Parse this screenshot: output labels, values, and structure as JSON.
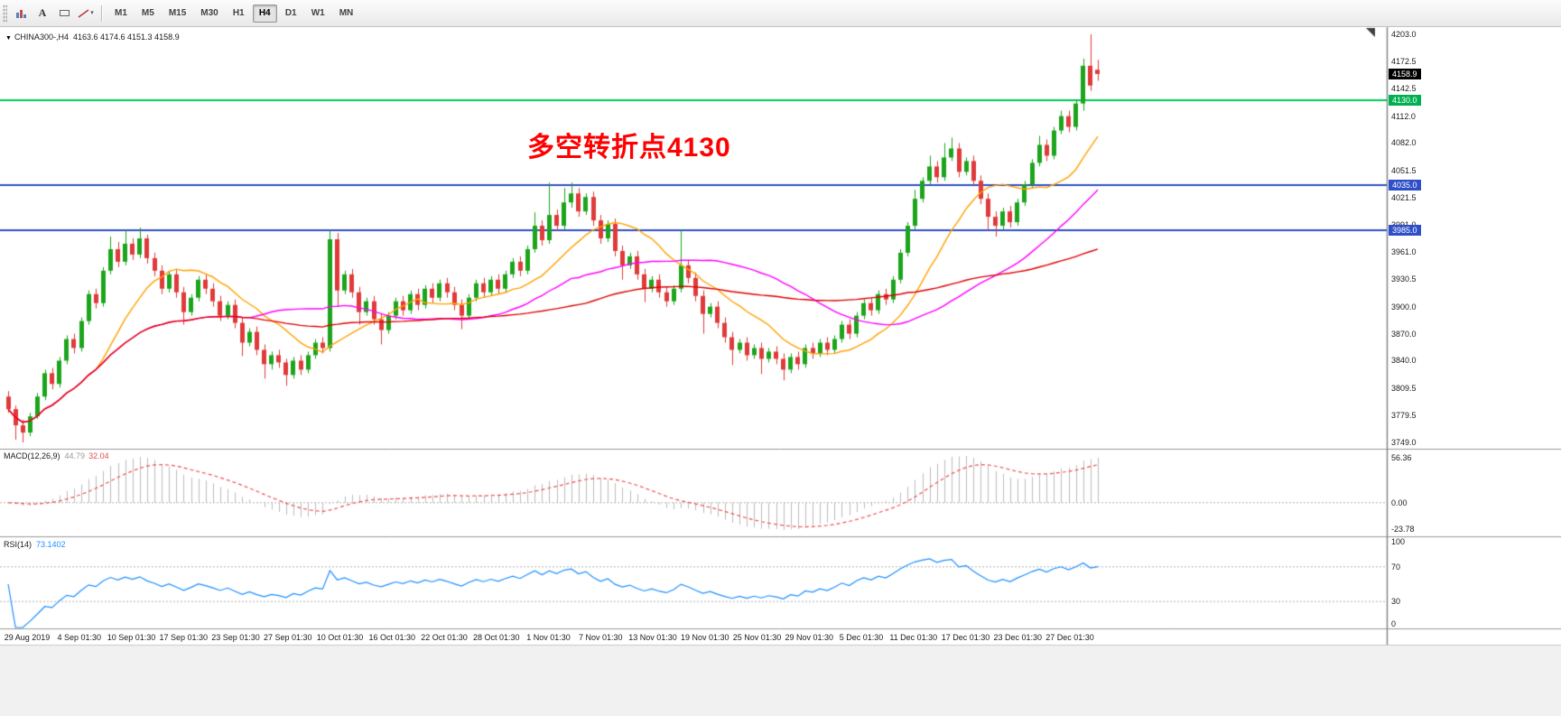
{
  "toolbar": {
    "text_tool_label": "A",
    "dropdown_icon": "▾",
    "timeframes": [
      {
        "label": "M1",
        "active": false
      },
      {
        "label": "M5",
        "active": false
      },
      {
        "label": "M15",
        "active": false
      },
      {
        "label": "M30",
        "active": false
      },
      {
        "label": "H1",
        "active": false
      },
      {
        "label": "H4",
        "active": true
      },
      {
        "label": "D1",
        "active": false
      },
      {
        "label": "W1",
        "active": false
      },
      {
        "label": "MN",
        "active": false
      }
    ]
  },
  "symbol_panel": {
    "menu_icon": "▼",
    "symbol": "CHINA300-,H4",
    "ohlc": "4163.6 4174.6 4151.3 4158.9"
  },
  "chart_data": {
    "type": "candlestick",
    "symbol": "CHINA300-",
    "timeframe": "H4",
    "title": "CHINA300-,H4",
    "annotation": {
      "text": "多空转折点4130",
      "color": "#ff0000"
    },
    "price_axis": {
      "max": 4203.0,
      "min": 3749.0,
      "ticks": [
        "4203.0",
        "4172.5",
        "4142.5",
        "4112.0",
        "4082.0",
        "4051.5",
        "4021.5",
        "3991.0",
        "3961.0",
        "3930.5",
        "3900.0",
        "3870.0",
        "3840.0",
        "3809.5",
        "3779.5",
        "3749.0"
      ]
    },
    "price_tags": [
      {
        "text": "4158.9",
        "price": 4158.9,
        "bg": "#000000"
      },
      {
        "text": "4130.0",
        "price": 4130.0,
        "bg": "#00b050"
      },
      {
        "text": "4035.0",
        "price": 4035.0,
        "bg": "#2e4fc8"
      },
      {
        "text": "3985.0",
        "price": 3985.0,
        "bg": "#2e4fc8"
      }
    ],
    "hlines": [
      {
        "price": 4130.0,
        "color": "#00c853"
      },
      {
        "price": 4035.0,
        "color": "#2e4fc8"
      },
      {
        "price": 3985.0,
        "color": "#2e4fc8"
      }
    ],
    "colors": {
      "up": "#1ca51c",
      "down": "#e03a3a",
      "macd_hist": "#bdbdbd",
      "macd_signal": "#f05050",
      "rsi": "#1e90ff"
    },
    "moving_averages": [
      {
        "period": 13,
        "color": "#ffa200"
      },
      {
        "period": 34,
        "color": "#ff00ff"
      },
      {
        "period": 80,
        "color": "#e00000"
      }
    ],
    "x_labels": [
      "29 Aug 2019",
      "4 Sep 01:30",
      "10 Sep 01:30",
      "17 Sep 01:30",
      "23 Sep 01:30",
      "27 Sep 01:30",
      "10 Oct 01:30",
      "16 Oct 01:30",
      "22 Oct 01:30",
      "28 Oct 01:30",
      "1 Nov 01:30",
      "7 Nov 01:30",
      "13 Nov 01:30",
      "19 Nov 01:30",
      "25 Nov 01:30",
      "29 Nov 01:30",
      "5 Dec 01:30",
      "11 Dec 01:30",
      "17 Dec 01:30",
      "23 Dec 01:30",
      "27 Dec 01:30"
    ],
    "candles": [
      [
        3800,
        3806,
        3782,
        3786
      ],
      [
        3786,
        3790,
        3752,
        3768
      ],
      [
        3768,
        3774,
        3749,
        3760
      ],
      [
        3760,
        3782,
        3756,
        3778
      ],
      [
        3778,
        3804,
        3775,
        3800
      ],
      [
        3800,
        3830,
        3796,
        3826
      ],
      [
        3826,
        3832,
        3808,
        3814
      ],
      [
        3814,
        3844,
        3810,
        3840
      ],
      [
        3840,
        3868,
        3836,
        3864
      ],
      [
        3864,
        3870,
        3848,
        3854
      ],
      [
        3854,
        3888,
        3850,
        3884
      ],
      [
        3884,
        3918,
        3880,
        3914
      ],
      [
        3914,
        3920,
        3898,
        3904
      ],
      [
        3904,
        3944,
        3900,
        3940
      ],
      [
        3940,
        3978,
        3936,
        3964
      ],
      [
        3964,
        3972,
        3944,
        3950
      ],
      [
        3950,
        3985,
        3946,
        3970
      ],
      [
        3970,
        3976,
        3952,
        3958
      ],
      [
        3958,
        3988,
        3954,
        3976
      ],
      [
        3976,
        3980,
        3948,
        3954
      ],
      [
        3954,
        3960,
        3934,
        3940
      ],
      [
        3940,
        3946,
        3914,
        3920
      ],
      [
        3920,
        3940,
        3916,
        3936
      ],
      [
        3936,
        3942,
        3910,
        3916
      ],
      [
        3916,
        3922,
        3880,
        3894
      ],
      [
        3894,
        3914,
        3890,
        3910
      ],
      [
        3910,
        3934,
        3906,
        3930
      ],
      [
        3930,
        3936,
        3914,
        3920
      ],
      [
        3920,
        3926,
        3900,
        3906
      ],
      [
        3906,
        3912,
        3884,
        3890
      ],
      [
        3890,
        3906,
        3886,
        3902
      ],
      [
        3902,
        3908,
        3876,
        3882
      ],
      [
        3882,
        3888,
        3845,
        3860
      ],
      [
        3860,
        3876,
        3856,
        3872
      ],
      [
        3872,
        3878,
        3846,
        3852
      ],
      [
        3852,
        3858,
        3820,
        3836
      ],
      [
        3836,
        3850,
        3830,
        3846
      ],
      [
        3846,
        3852,
        3832,
        3838
      ],
      [
        3838,
        3842,
        3812,
        3824
      ],
      [
        3824,
        3844,
        3820,
        3840
      ],
      [
        3840,
        3846,
        3824,
        3830
      ],
      [
        3830,
        3850,
        3826,
        3846
      ],
      [
        3846,
        3864,
        3842,
        3860
      ],
      [
        3860,
        3866,
        3848,
        3854
      ],
      [
        3854,
        3985,
        3850,
        3975
      ],
      [
        3975,
        3982,
        3900,
        3918
      ],
      [
        3918,
        3940,
        3914,
        3936
      ],
      [
        3936,
        3942,
        3910,
        3916
      ],
      [
        3916,
        3922,
        3880,
        3894
      ],
      [
        3894,
        3910,
        3890,
        3906
      ],
      [
        3906,
        3912,
        3880,
        3886
      ],
      [
        3886,
        3892,
        3858,
        3874
      ],
      [
        3874,
        3894,
        3870,
        3890
      ],
      [
        3890,
        3910,
        3886,
        3906
      ],
      [
        3906,
        3912,
        3890,
        3896
      ],
      [
        3896,
        3918,
        3892,
        3914
      ],
      [
        3914,
        3920,
        3896,
        3902
      ],
      [
        3902,
        3924,
        3898,
        3920
      ],
      [
        3920,
        3926,
        3904,
        3910
      ],
      [
        3910,
        3930,
        3906,
        3926
      ],
      [
        3926,
        3932,
        3910,
        3916
      ],
      [
        3916,
        3922,
        3896,
        3902
      ],
      [
        3902,
        3908,
        3875,
        3890
      ],
      [
        3890,
        3914,
        3886,
        3910
      ],
      [
        3910,
        3930,
        3906,
        3926
      ],
      [
        3926,
        3932,
        3910,
        3916
      ],
      [
        3916,
        3934,
        3912,
        3930
      ],
      [
        3930,
        3936,
        3914,
        3920
      ],
      [
        3920,
        3940,
        3916,
        3936
      ],
      [
        3936,
        3954,
        3932,
        3950
      ],
      [
        3950,
        3956,
        3934,
        3940
      ],
      [
        3940,
        3968,
        3936,
        3964
      ],
      [
        3964,
        4005,
        3960,
        3990
      ],
      [
        3990,
        3996,
        3968,
        3974
      ],
      [
        3974,
        4038,
        3970,
        4002
      ],
      [
        4002,
        4008,
        3984,
        3990
      ],
      [
        3990,
        4032,
        3986,
        4016
      ],
      [
        4016,
        4038,
        4010,
        4026
      ],
      [
        4026,
        4032,
        4000,
        4006
      ],
      [
        4006,
        4026,
        4002,
        4022
      ],
      [
        4022,
        4028,
        3990,
        3996
      ],
      [
        3996,
        4002,
        3970,
        3976
      ],
      [
        3976,
        3996,
        3972,
        3992
      ],
      [
        3992,
        3998,
        3956,
        3962
      ],
      [
        3962,
        3968,
        3930,
        3946
      ],
      [
        3946,
        3960,
        3942,
        3956
      ],
      [
        3956,
        3962,
        3930,
        3936
      ],
      [
        3936,
        3942,
        3905,
        3920
      ],
      [
        3920,
        3934,
        3916,
        3930
      ],
      [
        3930,
        3936,
        3910,
        3916
      ],
      [
        3916,
        3922,
        3900,
        3906
      ],
      [
        3906,
        3924,
        3902,
        3920
      ],
      [
        3920,
        3985,
        3916,
        3946
      ],
      [
        3946,
        3952,
        3926,
        3932
      ],
      [
        3932,
        3938,
        3906,
        3912
      ],
      [
        3912,
        3918,
        3870,
        3892
      ],
      [
        3892,
        3904,
        3888,
        3900
      ],
      [
        3900,
        3906,
        3876,
        3882
      ],
      [
        3882,
        3888,
        3860,
        3866
      ],
      [
        3866,
        3872,
        3835,
        3852
      ],
      [
        3852,
        3864,
        3848,
        3860
      ],
      [
        3860,
        3866,
        3840,
        3846
      ],
      [
        3846,
        3858,
        3842,
        3854
      ],
      [
        3854,
        3860,
        3825,
        3842
      ],
      [
        3842,
        3854,
        3838,
        3850
      ],
      [
        3850,
        3856,
        3836,
        3842
      ],
      [
        3842,
        3848,
        3818,
        3830
      ],
      [
        3830,
        3848,
        3826,
        3844
      ],
      [
        3844,
        3850,
        3830,
        3836
      ],
      [
        3836,
        3858,
        3832,
        3854
      ],
      [
        3854,
        3860,
        3842,
        3848
      ],
      [
        3848,
        3864,
        3844,
        3860
      ],
      [
        3860,
        3866,
        3846,
        3852
      ],
      [
        3852,
        3868,
        3848,
        3864
      ],
      [
        3864,
        3884,
        3860,
        3880
      ],
      [
        3880,
        3886,
        3864,
        3870
      ],
      [
        3870,
        3894,
        3866,
        3890
      ],
      [
        3890,
        3908,
        3886,
        3904
      ],
      [
        3904,
        3910,
        3890,
        3896
      ],
      [
        3896,
        3918,
        3892,
        3914
      ],
      [
        3914,
        3920,
        3902,
        3908
      ],
      [
        3908,
        3934,
        3904,
        3930
      ],
      [
        3930,
        3964,
        3926,
        3960
      ],
      [
        3960,
        3994,
        3956,
        3990
      ],
      [
        3990,
        4030,
        3986,
        4020
      ],
      [
        4020,
        4044,
        4016,
        4040
      ],
      [
        4040,
        4068,
        4036,
        4056
      ],
      [
        4056,
        4062,
        4038,
        4044
      ],
      [
        4044,
        4082,
        4040,
        4066
      ],
      [
        4066,
        4088,
        4062,
        4076
      ],
      [
        4076,
        4082,
        4044,
        4050
      ],
      [
        4050,
        4066,
        4046,
        4062
      ],
      [
        4062,
        4068,
        4034,
        4040
      ],
      [
        4040,
        4046,
        4014,
        4020
      ],
      [
        4020,
        4026,
        3985,
        4000
      ],
      [
        4000,
        4006,
        3978,
        3990
      ],
      [
        3990,
        4010,
        3986,
        4006
      ],
      [
        4006,
        4012,
        3988,
        3994
      ],
      [
        3994,
        4020,
        3990,
        4016
      ],
      [
        4016,
        4040,
        4012,
        4036
      ],
      [
        4036,
        4064,
        4032,
        4060
      ],
      [
        4060,
        4090,
        4056,
        4080
      ],
      [
        4080,
        4086,
        4062,
        4068
      ],
      [
        4068,
        4100,
        4064,
        4096
      ],
      [
        4096,
        4118,
        4092,
        4112
      ],
      [
        4112,
        4118,
        4094,
        4100
      ],
      [
        4100,
        4130,
        4096,
        4126
      ],
      [
        4126,
        4176,
        4118,
        4168
      ],
      [
        4168,
        4203,
        4140,
        4146
      ],
      [
        4163.6,
        4174.6,
        4151.3,
        4158.9
      ]
    ],
    "indicators": {
      "macd": {
        "label": "MACD(12,26,9)",
        "value_main": "44.79",
        "value_signal": "32.04",
        "params": [
          12,
          26,
          9
        ],
        "axis_labels": [
          "56.36",
          "0.00",
          "-23.78"
        ]
      },
      "rsi": {
        "label": "RSI(14)",
        "value": "73.1402",
        "period": 14,
        "axis_labels": [
          "100",
          "70",
          "30",
          "0"
        ],
        "levels": [
          70,
          30
        ]
      }
    }
  }
}
